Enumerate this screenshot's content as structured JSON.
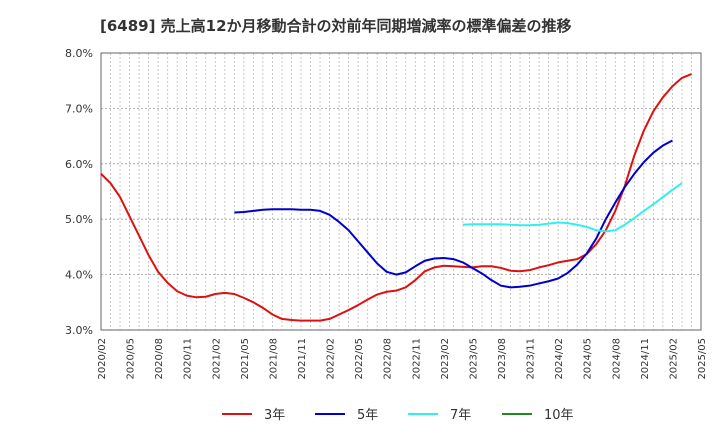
{
  "chart_data": {
    "type": "line",
    "title": "[6489]  売上高12か月移動合計の対前年同期増減率の標準偏差の推移",
    "xlabel": "",
    "ylabel": "",
    "ylim": [
      3.0,
      8.0
    ],
    "yticks": [
      "3.0%",
      "4.0%",
      "5.0%",
      "6.0%",
      "7.0%",
      "8.0%"
    ],
    "ytick_values": [
      3.0,
      4.0,
      5.0,
      6.0,
      7.0,
      8.0
    ],
    "xlim": [
      "2020/02",
      "2025/05"
    ],
    "xticks": [
      "2020/02",
      "2020/05",
      "2020/08",
      "2020/11",
      "2021/02",
      "2021/05",
      "2021/08",
      "2021/11",
      "2022/02",
      "2022/05",
      "2022/08",
      "2022/11",
      "2023/02",
      "2023/05",
      "2023/08",
      "2023/11",
      "2024/02",
      "2024/05",
      "2024/08",
      "2024/11",
      "2025/02",
      "2025/05"
    ],
    "grid": true,
    "legend_position": "bottom",
    "series": [
      {
        "name": "3年",
        "color": "#dd1111",
        "start": "2020/02",
        "values": [
          5.82,
          5.65,
          5.4,
          5.05,
          4.7,
          4.35,
          4.05,
          3.85,
          3.7,
          3.62,
          3.59,
          3.6,
          3.65,
          3.67,
          3.65,
          3.58,
          3.5,
          3.4,
          3.28,
          3.2,
          3.18,
          3.17,
          3.17,
          3.17,
          3.2,
          3.28,
          3.36,
          3.45,
          3.55,
          3.64,
          3.69,
          3.71,
          3.77,
          3.9,
          4.06,
          4.13,
          4.16,
          4.15,
          4.14,
          4.13,
          4.15,
          4.15,
          4.12,
          4.07,
          4.06,
          4.08,
          4.13,
          4.17,
          4.22,
          4.25,
          4.28,
          4.37,
          4.55,
          4.8,
          5.15,
          5.6,
          6.15,
          6.6,
          6.95,
          7.2,
          7.4,
          7.55,
          7.62
        ]
      },
      {
        "name": "5年",
        "color": "#0000cc",
        "start": "2021/04",
        "values": [
          5.12,
          5.13,
          5.15,
          5.17,
          5.18,
          5.18,
          5.18,
          5.17,
          5.17,
          5.15,
          5.08,
          4.95,
          4.8,
          4.6,
          4.4,
          4.2,
          4.05,
          4.0,
          4.04,
          4.15,
          4.25,
          4.29,
          4.3,
          4.28,
          4.22,
          4.12,
          4.02,
          3.9,
          3.8,
          3.77,
          3.78,
          3.8,
          3.84,
          3.88,
          3.93,
          4.03,
          4.18,
          4.38,
          4.65,
          5.0,
          5.3,
          5.58,
          5.82,
          6.03,
          6.2,
          6.33,
          6.42
        ]
      },
      {
        "name": "7年",
        "color": "#33eeee",
        "start": "2023/04",
        "values": [
          4.9,
          4.91,
          4.91,
          4.91,
          4.91,
          4.9,
          4.89,
          4.89,
          4.9,
          4.92,
          4.94,
          4.93,
          4.9,
          4.86,
          4.8,
          4.78,
          4.8,
          4.9,
          5.02,
          5.15,
          5.27,
          5.4,
          5.53,
          5.65
        ]
      },
      {
        "name": "10年",
        "color": "#228822",
        "start": "",
        "values": []
      }
    ]
  }
}
